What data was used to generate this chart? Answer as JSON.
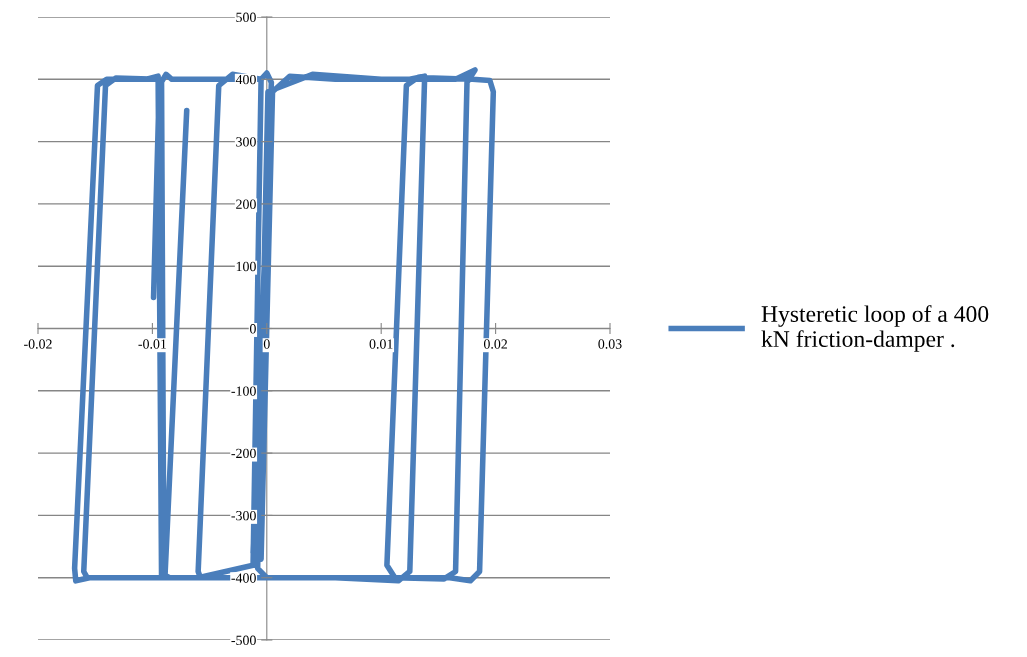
{
  "chart_data": {
    "type": "line",
    "xlim": [
      -0.02,
      0.03
    ],
    "ylim": [
      -500,
      500
    ],
    "xticks": [
      -0.02,
      -0.01,
      0,
      0.01,
      0.02,
      0.03
    ],
    "yticks": [
      -500,
      -400,
      -300,
      -200,
      -100,
      0,
      100,
      200,
      300,
      400,
      500
    ],
    "grid": "y",
    "legend": "right",
    "marker": "none",
    "line_style": "solid",
    "series": [
      {
        "name": "Hysteretic loop of a 400 kN friction-damper .",
        "color": "#4a7ebb",
        "x": [
          -0.0099,
          -0.0094,
          -0.0088,
          -0.0083,
          -0.0005,
          0.0,
          0.0004,
          -0.0012,
          -0.0005,
          0.0005,
          0.002,
          0.006,
          0.0125,
          0.0138,
          0.0125,
          0.0115,
          0.006,
          0.0,
          -0.0008,
          0.0001,
          0.004,
          0.01,
          0.0165,
          0.0182,
          0.0175,
          0.0165,
          0.0155,
          0.0112,
          0.0105,
          0.0122,
          0.0132,
          0.018,
          0.0195,
          0.0198,
          0.0186,
          0.0178,
          0.016,
          0.005,
          -0.0058,
          -0.006,
          -0.0042,
          -0.003,
          -0.0005,
          -0.0012,
          -0.006,
          -0.0155,
          -0.0167,
          -0.0168,
          -0.0148,
          -0.014,
          -0.0105,
          -0.0095,
          -0.0092,
          -0.0157,
          -0.016,
          -0.0141,
          -0.0132,
          -0.0095,
          -0.0092,
          -0.009,
          -0.0085,
          -0.0089,
          -0.007
        ],
        "values": [
          50,
          390,
          408,
          400,
          400,
          410,
          395,
          -360,
          -370,
          380,
          405,
          400,
          400,
          405,
          -390,
          -405,
          -400,
          -400,
          -385,
          380,
          408,
          400,
          400,
          415,
          395,
          -390,
          -402,
          -400,
          -380,
          390,
          403,
          400,
          398,
          380,
          -390,
          -405,
          -400,
          -400,
          -400,
          -390,
          390,
          408,
          400,
          -380,
          -400,
          -400,
          -405,
          -385,
          390,
          400,
          400,
          405,
          -400,
          -400,
          -390,
          390,
          402,
          400,
          395,
          -395,
          -400,
          -398,
          350
        ]
      }
    ]
  }
}
